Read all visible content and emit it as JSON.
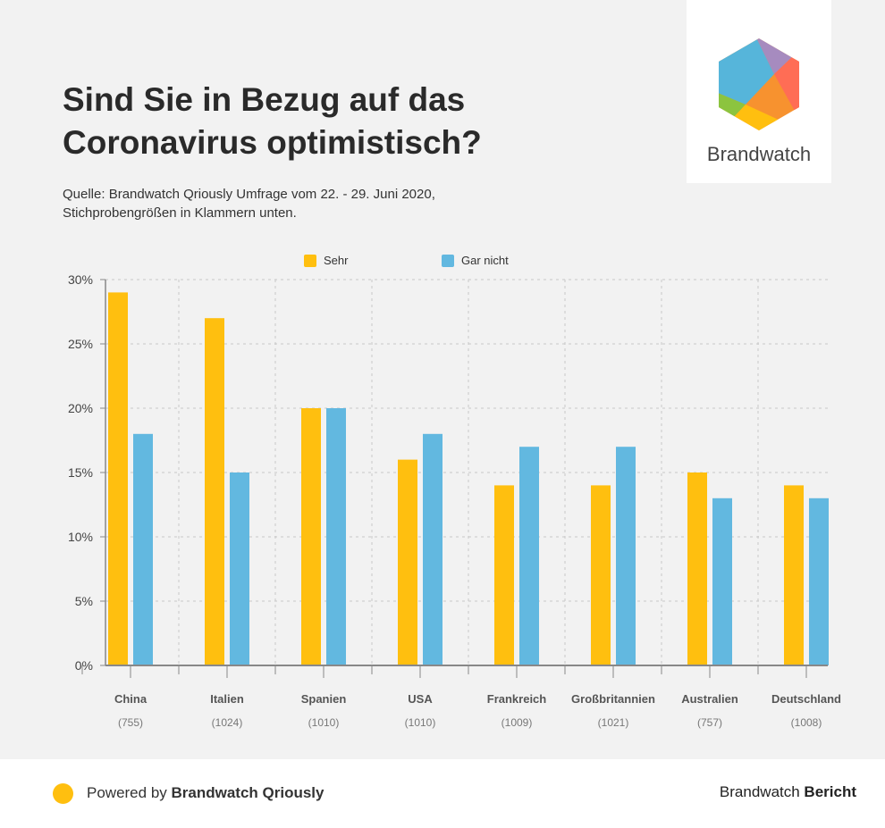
{
  "header": {
    "title_line1": "Sind Sie in Bezug auf das",
    "title_line2": "Coronavirus optimistisch?",
    "subtitle_line1": "Quelle: Brandwatch Qriously Umfrage vom 22. - 29. Juni 2020,",
    "subtitle_line2": "Stichprobengrößen in Klammern unten."
  },
  "logo": {
    "text": "Brandwatch"
  },
  "footer": {
    "powered_prefix": "Powered by ",
    "powered_brand": "Brandwatch Qriously",
    "report_prefix": "Brandwatch ",
    "report_bold": "Bericht",
    "dot_color": "#ffbf0f"
  },
  "chart_data": {
    "type": "bar",
    "title": "",
    "xlabel": "",
    "ylabel": "",
    "ylim": [
      0,
      30
    ],
    "yticks": [
      "0%",
      "5%",
      "10%",
      "15%",
      "20%",
      "25%",
      "30%"
    ],
    "grid": true,
    "legend_position": "top",
    "categories": [
      "China",
      "Italien",
      "Spanien",
      "USA",
      "Frankreich",
      "Großbritannien",
      "Australien",
      "Deutschland"
    ],
    "sample_sizes": [
      "(755)",
      "(1024)",
      "(1010)",
      "(1010)",
      "(1009)",
      "(1021)",
      "(757)",
      "(1008)"
    ],
    "series": [
      {
        "name": "Sehr",
        "color": "#ffbf0f",
        "values": [
          29,
          27,
          20,
          16,
          14,
          14,
          15,
          14
        ]
      },
      {
        "name": "Gar nicht",
        "color": "#62b8e0",
        "values": [
          18,
          15,
          20,
          18,
          17,
          17,
          13,
          13
        ]
      }
    ]
  }
}
